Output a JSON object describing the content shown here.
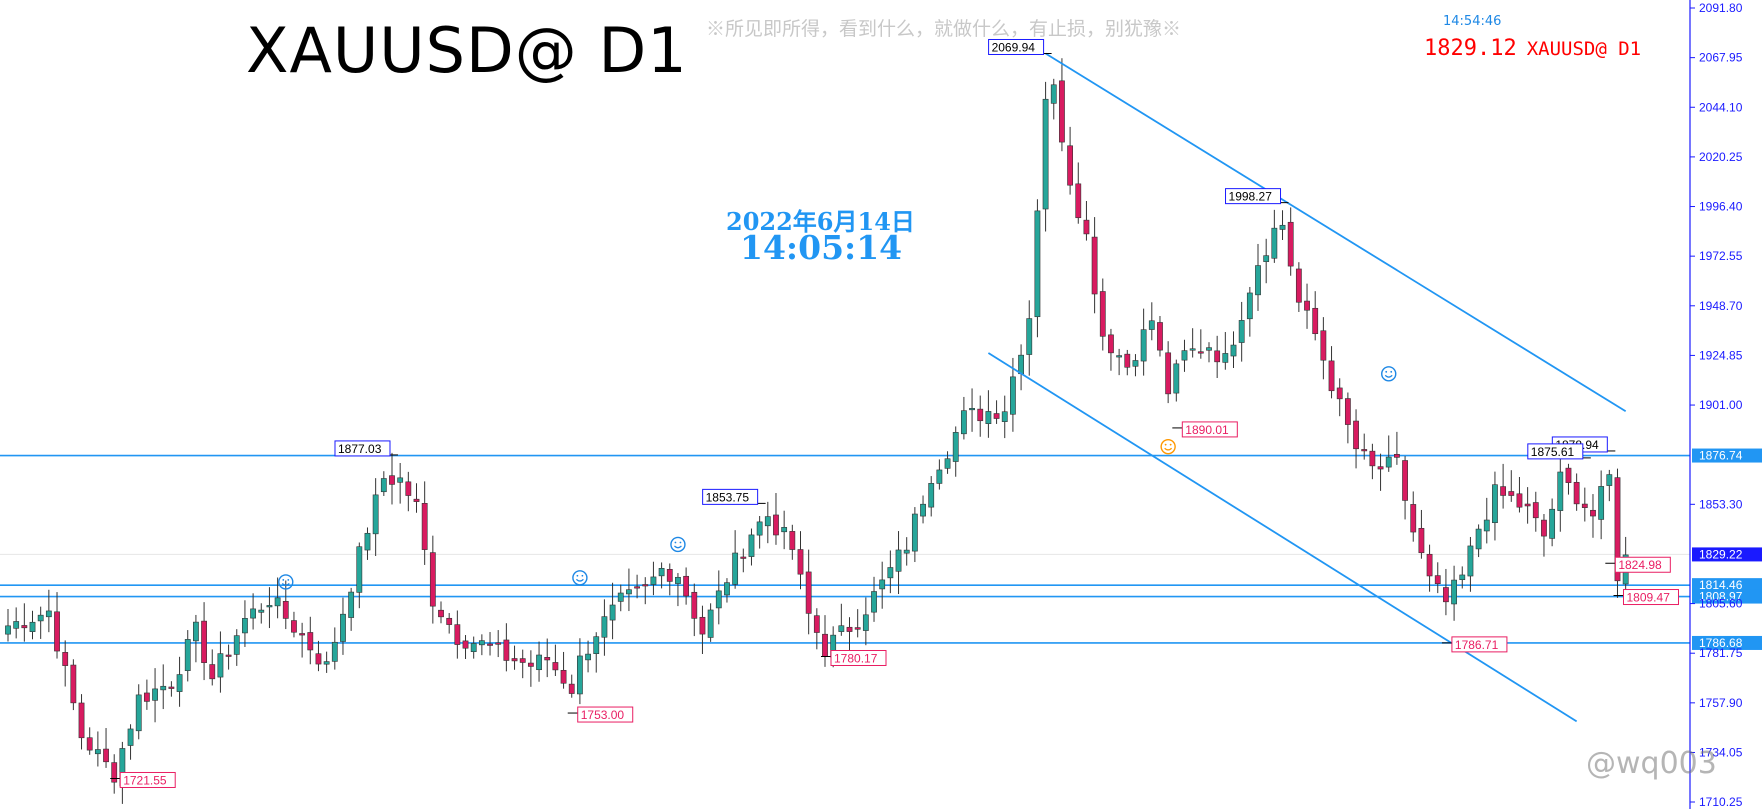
{
  "header": {
    "symbol_title": "XAUUSD@ D1",
    "slogan": "※所见即所得，看到什么，就做什么，有止损，别犹豫※",
    "clock": "14:54:46",
    "price_readout": "1829.12",
    "symbol_readout": "XAUUSD@ D1",
    "date_label": "2022年6月14日",
    "time_label": "14:05:14"
  },
  "watermark": "@wq003",
  "colors": {
    "bull": "#26a69a",
    "bear": "#d81b60",
    "line": "#2196f3",
    "peak_label_border": "#1a1aff",
    "trough_label_border": "#e91e63",
    "readout": "#ff0000"
  },
  "chart_data": {
    "type": "candlestick",
    "title": "XAUUSD@ D1",
    "ylim": [
      1710.25,
      2091.8
    ],
    "y_tick_labels": [
      "2091.80",
      "2067.95",
      "2044.10",
      "2020.25",
      "1996.40",
      "1972.55",
      "1948.70",
      "1924.85",
      "1901.00",
      "1853.30",
      "1805.60",
      "1781.75",
      "1757.90",
      "1734.05",
      "1710.25"
    ],
    "horizontal_levels": [
      {
        "label": "1876.74",
        "value": 1876.74
      },
      {
        "label": "1814.46",
        "value": 1814.46
      },
      {
        "label": "1808.97",
        "value": 1808.97
      },
      {
        "label": "1786.68",
        "value": 1786.68
      }
    ],
    "current_price": {
      "label": "1829.22",
      "value": 1829.22
    },
    "peak_labels": [
      {
        "label": "1877.03",
        "index": 47,
        "value": 1877.03
      },
      {
        "label": "1853.75",
        "index": 92,
        "value": 1853.75
      },
      {
        "label": "2069.94",
        "index": 127,
        "value": 2069.94
      },
      {
        "label": "1998.27",
        "index": 156,
        "value": 1998.27
      },
      {
        "label": "1878.94",
        "index": 196,
        "value": 1878.94
      },
      {
        "label": "1875.61",
        "index": 193,
        "value": 1875.61
      }
    ],
    "trough_labels": [
      {
        "label": "1721.55",
        "index": 13,
        "value": 1721.55
      },
      {
        "label": "1753.00",
        "index": 69,
        "value": 1753.0
      },
      {
        "label": "1780.17",
        "index": 100,
        "value": 1780.17
      },
      {
        "label": "1890.01",
        "index": 143,
        "value": 1890.01
      },
      {
        "label": "1786.71",
        "index": 176,
        "value": 1786.71
      },
      {
        "label": "1824.98",
        "index": 196,
        "value": 1824.98
      },
      {
        "label": "1809.47",
        "index": 197,
        "value": 1809.47
      }
    ],
    "trend_lines": [
      {
        "name": "upper",
        "from": {
          "index": 127,
          "value": 2069.94
        },
        "to": {
          "index": 198,
          "value": 1898.0
        }
      },
      {
        "name": "lower",
        "from": {
          "index": 120,
          "value": 1926.0
        },
        "to": {
          "index": 192,
          "value": 1749.0
        }
      }
    ],
    "smileys": [
      {
        "index": 34,
        "value": 1816,
        "color": "#1e88e5"
      },
      {
        "index": 70,
        "value": 1818,
        "color": "#1e88e5"
      },
      {
        "index": 82,
        "value": 1834,
        "color": "#1e88e5"
      },
      {
        "index": 142,
        "value": 1881,
        "color": "#ff9800"
      },
      {
        "index": 169,
        "value": 1916,
        "color": "#1e88e5"
      }
    ],
    "anchors": [
      [
        0,
        1795
      ],
      [
        5,
        1802
      ],
      [
        9,
        1742
      ],
      [
        12,
        1728
      ],
      [
        13,
        1724
      ],
      [
        16,
        1760
      ],
      [
        20,
        1768
      ],
      [
        23,
        1792
      ],
      [
        25,
        1770
      ],
      [
        29,
        1798
      ],
      [
        32,
        1808
      ],
      [
        36,
        1790
      ],
      [
        39,
        1775
      ],
      [
        41,
        1802
      ],
      [
        44,
        1842
      ],
      [
        46,
        1866
      ],
      [
        48,
        1865
      ],
      [
        50,
        1852
      ],
      [
        52,
        1808
      ],
      [
        55,
        1790
      ],
      [
        58,
        1786
      ],
      [
        61,
        1780
      ],
      [
        64,
        1776
      ],
      [
        66,
        1779
      ],
      [
        69,
        1765
      ],
      [
        70,
        1778
      ],
      [
        72,
        1792
      ],
      [
        75,
        1806
      ],
      [
        78,
        1812
      ],
      [
        80,
        1822
      ],
      [
        82,
        1820
      ],
      [
        85,
        1792
      ],
      [
        88,
        1818
      ],
      [
        91,
        1840
      ],
      [
        93,
        1848
      ],
      [
        96,
        1832
      ],
      [
        98,
        1800
      ],
      [
        100,
        1784
      ],
      [
        104,
        1798
      ],
      [
        107,
        1815
      ],
      [
        110,
        1834
      ],
      [
        113,
        1868
      ],
      [
        115,
        1880
      ],
      [
        117,
        1895
      ],
      [
        120,
        1898
      ],
      [
        122,
        1900
      ],
      [
        125,
        1944
      ],
      [
        127,
        2050
      ],
      [
        128,
        2052
      ],
      [
        130,
        2010
      ],
      [
        132,
        1982
      ],
      [
        134,
        1935
      ],
      [
        137,
        1920
      ],
      [
        140,
        1942
      ],
      [
        142,
        1908
      ],
      [
        144,
        1925
      ],
      [
        147,
        1930
      ],
      [
        149,
        1922
      ],
      [
        151,
        1946
      ],
      [
        153,
        1970
      ],
      [
        155,
        1985
      ],
      [
        156,
        1988
      ],
      [
        158,
        1950
      ],
      [
        160,
        1935
      ],
      [
        163,
        1900
      ],
      [
        165,
        1880
      ],
      [
        167,
        1870
      ],
      [
        170,
        1872
      ],
      [
        172,
        1840
      ],
      [
        174,
        1816
      ],
      [
        176,
        1806
      ],
      [
        178,
        1818
      ],
      [
        180,
        1842
      ],
      [
        182,
        1858
      ],
      [
        184,
        1856
      ],
      [
        186,
        1850
      ],
      [
        188,
        1838
      ],
      [
        190,
        1865
      ],
      [
        192,
        1858
      ],
      [
        194,
        1848
      ],
      [
        196,
        1866
      ],
      [
        197,
        1820
      ],
      [
        198,
        1829
      ]
    ]
  }
}
